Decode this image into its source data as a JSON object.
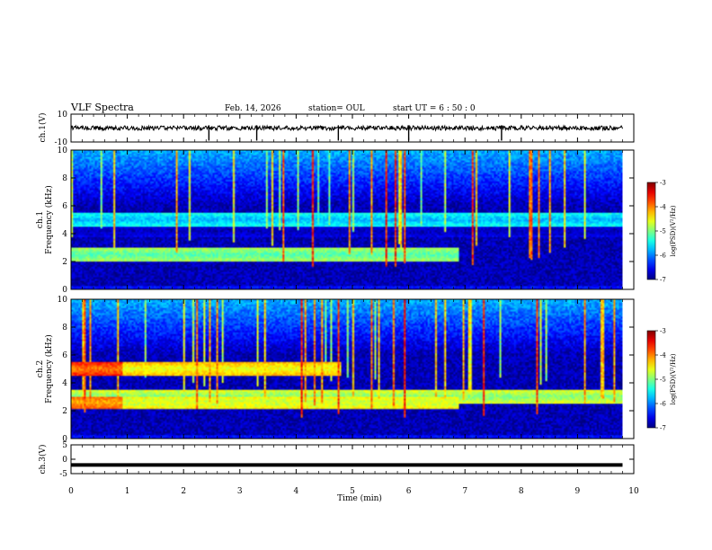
{
  "header": {
    "title": "VLF Spectra",
    "date": "Feb. 14, 2026",
    "station": "station= OUL",
    "start_ut": "start  UT =  6 : 50 : 0"
  },
  "chart_data": [
    {
      "type": "line",
      "name": "ch1-waveform",
      "ylabel": "ch.1(V)",
      "ylim": [
        -10,
        10
      ],
      "yticks": [
        "10",
        "-10"
      ],
      "xlim": [
        0,
        10
      ],
      "baseline": 0,
      "spike_times_min": [
        2.45,
        3.3,
        4.75,
        6.0,
        7.65
      ]
    },
    {
      "type": "heatmap",
      "name": "ch1-spectrogram",
      "title": "ch.1",
      "ylabel": "Frequency (kHz)",
      "ylim": [
        0,
        10
      ],
      "yticks": [
        "0",
        "2",
        "4",
        "6",
        "8",
        "10"
      ],
      "xlim": [
        0,
        9.8
      ],
      "colorbar": {
        "label": "log(PSD)(V²/Hz)",
        "min": -7,
        "max": -3,
        "ticks": [
          "-3",
          "-4",
          "-5",
          "-6",
          "-7"
        ]
      },
      "bands": [
        {
          "f_khz": 2.5,
          "level": -5.2,
          "t_end": 6.9
        },
        {
          "f_khz": 5.0,
          "level": -5.8,
          "t_end": 9.8
        },
        {
          "f_khz": 4.2,
          "level": -6.9,
          "t_end": 9.8
        }
      ]
    },
    {
      "type": "heatmap",
      "name": "ch2-spectrogram",
      "title": "ch.2",
      "ylabel": "Frequency (kHz)",
      "ylim": [
        0,
        10
      ],
      "yticks": [
        "0",
        "2",
        "4",
        "6",
        "8",
        "10"
      ],
      "xlim": [
        0,
        9.8
      ],
      "colorbar": {
        "label": "log(PSD)(V²/Hz)",
        "min": -7,
        "max": -3,
        "ticks": [
          "-3",
          "-4",
          "-5",
          "-6",
          "-7"
        ]
      },
      "bands": [
        {
          "f_khz": 5.0,
          "level": -4.0,
          "t_end": 0.9
        },
        {
          "f_khz": 5.0,
          "level": -4.6,
          "t_end": 4.8
        },
        {
          "f_khz": 2.6,
          "level": -4.2,
          "t_end": 0.9
        },
        {
          "f_khz": 2.6,
          "level": -4.8,
          "t_end": 6.9
        },
        {
          "f_khz": 3.0,
          "level": -5.0,
          "t_end": 9.8
        }
      ]
    },
    {
      "type": "line",
      "name": "ch3-waveform",
      "ylabel": "ch.3(V)",
      "ylim": [
        -5,
        5
      ],
      "yticks": [
        "5",
        "0",
        "-5"
      ],
      "xlim": [
        0,
        10
      ],
      "baseline": -2
    }
  ],
  "xaxis": {
    "label": "Time (min)",
    "ticks": [
      "0",
      "1",
      "2",
      "3",
      "4",
      "5",
      "6",
      "7",
      "8",
      "9",
      "10"
    ]
  }
}
